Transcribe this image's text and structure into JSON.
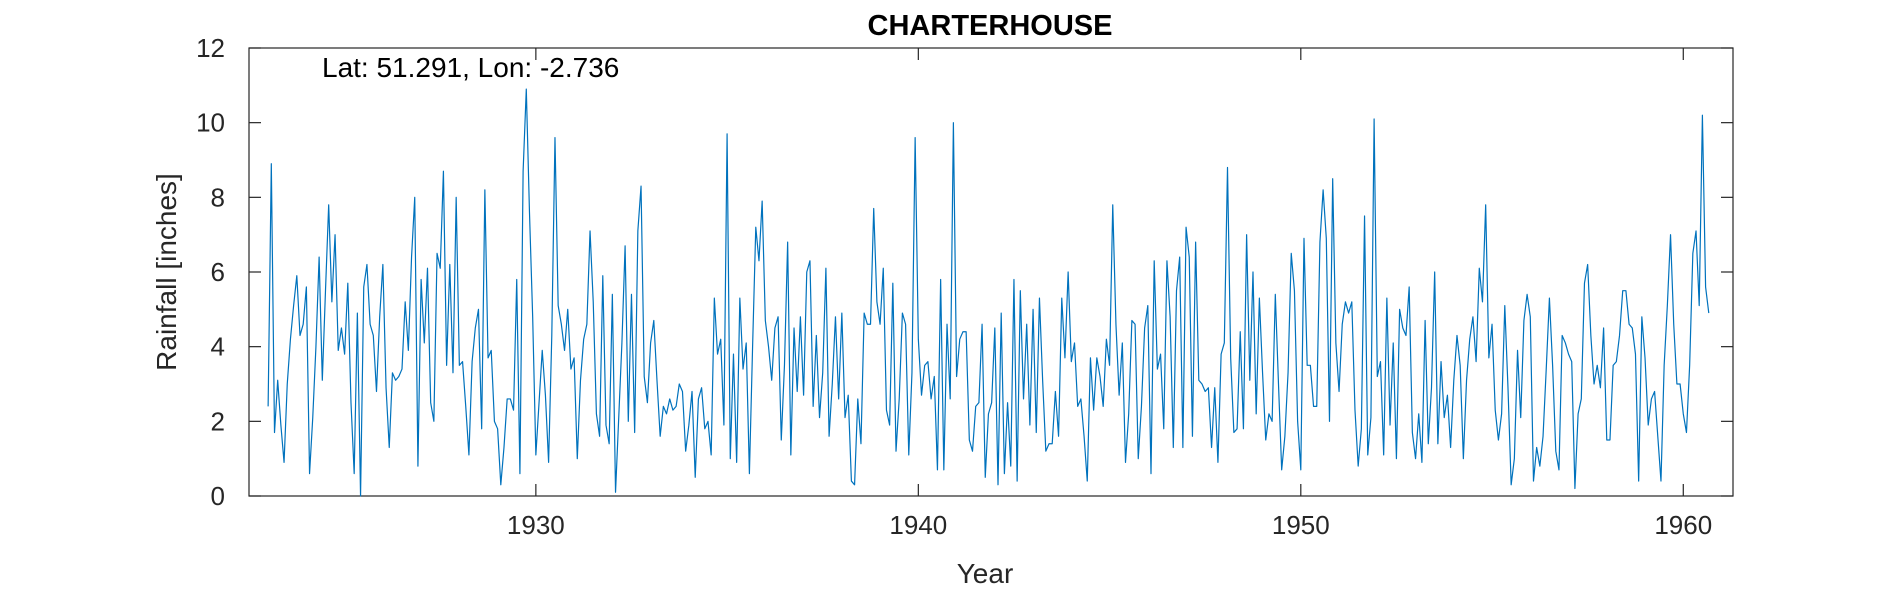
{
  "chart_data": {
    "type": "line",
    "title": "CHARTERHOUSE",
    "annotation": "Lat: 51.291, Lon: -2.736",
    "xlabel": "Year",
    "ylabel": "Rainfall [inches]",
    "xlim": [
      1922.5,
      1961.3
    ],
    "ylim": [
      0,
      12
    ],
    "x_ticks": [
      1930,
      1940,
      1950,
      1960
    ],
    "x_tick_labels": [
      "1930",
      "1940",
      "1950",
      "1960"
    ],
    "y_ticks": [
      0,
      2,
      4,
      6,
      8,
      10,
      12
    ],
    "y_tick_labels": [
      "0",
      "2",
      "4",
      "6",
      "8",
      "10",
      "12"
    ],
    "grid": false,
    "box": true,
    "series": [
      {
        "color": "#0072BD",
        "x_start": 1923.0,
        "x_step": 0.08333333,
        "values": [
          2.4,
          8.9,
          1.7,
          3.1,
          1.9,
          0.9,
          3.0,
          4.2,
          5.1,
          5.9,
          4.3,
          4.6,
          5.6,
          0.6,
          2.1,
          4.0,
          6.4,
          3.1,
          5.5,
          7.8,
          5.2,
          7.0,
          3.9,
          4.5,
          3.8,
          5.7,
          2.5,
          0.6,
          4.9,
          0.0,
          5.6,
          6.2,
          4.6,
          4.3,
          2.8,
          4.8,
          6.2,
          2.9,
          1.3,
          3.3,
          3.1,
          3.2,
          3.4,
          5.2,
          3.9,
          6.4,
          8.0,
          0.8,
          5.8,
          4.1,
          6.1,
          2.5,
          2.0,
          6.5,
          6.1,
          8.7,
          3.5,
          6.2,
          3.3,
          8.0,
          3.5,
          3.6,
          2.4,
          1.1,
          3.6,
          4.5,
          5.0,
          1.8,
          8.2,
          3.7,
          3.9,
          2.0,
          1.8,
          0.3,
          1.3,
          2.6,
          2.6,
          2.3,
          5.8,
          0.6,
          8.7,
          10.9,
          7.6,
          4.8,
          1.1,
          2.5,
          3.9,
          2.7,
          0.9,
          4.3,
          9.6,
          5.1,
          4.6,
          3.9,
          5.0,
          3.4,
          3.7,
          1.0,
          3.1,
          4.2,
          4.6,
          7.1,
          5.2,
          2.2,
          1.6,
          5.9,
          1.9,
          1.4,
          5.4,
          0.1,
          2.1,
          4.1,
          6.7,
          2.0,
          5.4,
          1.7,
          7.1,
          8.3,
          3.2,
          2.5,
          4.1,
          4.7,
          3.1,
          1.6,
          2.4,
          2.2,
          2.6,
          2.3,
          2.4,
          3.0,
          2.8,
          1.2,
          1.9,
          2.8,
          0.5,
          2.6,
          2.9,
          1.8,
          2.0,
          1.1,
          5.3,
          3.8,
          4.2,
          1.9,
          9.7,
          1.0,
          3.8,
          0.9,
          5.3,
          3.4,
          4.1,
          0.6,
          4.0,
          7.2,
          6.3,
          7.9,
          4.7,
          4.0,
          3.1,
          4.5,
          4.8,
          1.5,
          3.5,
          6.8,
          1.1,
          4.5,
          2.8,
          4.8,
          2.7,
          6.0,
          6.3,
          2.4,
          4.3,
          2.1,
          3.3,
          6.1,
          1.6,
          3.0,
          4.8,
          2.6,
          4.9,
          2.1,
          2.7,
          0.4,
          0.3,
          2.6,
          1.4,
          4.9,
          4.6,
          4.6,
          7.7,
          5.2,
          4.6,
          6.1,
          2.3,
          1.9,
          5.7,
          1.2,
          2.6,
          4.9,
          4.6,
          1.1,
          3.3,
          9.6,
          4.2,
          2.7,
          3.5,
          3.6,
          2.6,
          3.2,
          0.7,
          5.8,
          0.7,
          4.6,
          2.6,
          10.0,
          3.2,
          4.2,
          4.4,
          4.4,
          1.5,
          1.2,
          2.4,
          2.5,
          4.6,
          0.5,
          2.2,
          2.5,
          4.5,
          0.3,
          4.9,
          0.6,
          2.5,
          0.8,
          5.8,
          0.4,
          5.5,
          2.6,
          4.6,
          1.9,
          5.0,
          1.7,
          5.3,
          3.1,
          1.2,
          1.4,
          1.4,
          2.8,
          1.6,
          5.3,
          3.7,
          6.0,
          3.6,
          4.1,
          2.4,
          2.6,
          1.6,
          0.4,
          3.7,
          2.3,
          3.7,
          3.2,
          2.4,
          4.2,
          3.5,
          7.8,
          4.6,
          2.7,
          4.1,
          0.9,
          2.2,
          4.7,
          4.6,
          1.0,
          2.4,
          4.5,
          5.1,
          0.6,
          6.3,
          3.4,
          3.8,
          1.8,
          6.3,
          4.8,
          1.3,
          5.5,
          6.4,
          1.3,
          7.2,
          6.4,
          1.6,
          6.8,
          3.1,
          3.0,
          2.8,
          2.9,
          1.3,
          2.9,
          0.9,
          3.8,
          4.1,
          8.8,
          3.7,
          1.7,
          1.8,
          4.4,
          1.8,
          7.0,
          3.1,
          6.0,
          2.2,
          5.3,
          3.3,
          1.5,
          2.2,
          2.0,
          5.4,
          3.0,
          0.7,
          1.6,
          3.3,
          6.5,
          5.5,
          2.0,
          0.7,
          6.9,
          3.5,
          3.5,
          2.4,
          2.4,
          6.8,
          8.2,
          6.9,
          2.0,
          8.5,
          4.1,
          2.8,
          4.6,
          5.2,
          4.9,
          5.2,
          2.3,
          0.8,
          1.8,
          7.5,
          1.1,
          2.1,
          10.1,
          3.2,
          3.6,
          1.1,
          5.3,
          1.9,
          4.1,
          1.0,
          5.0,
          4.5,
          4.3,
          5.6,
          1.7,
          1.0,
          2.2,
          0.9,
          4.7,
          1.4,
          2.9,
          6.0,
          1.4,
          3.6,
          2.1,
          2.7,
          1.3,
          3.1,
          4.3,
          3.5,
          1.0,
          3.1,
          4.2,
          4.8,
          3.6,
          6.1,
          5.2,
          7.8,
          3.7,
          4.6,
          2.3,
          1.5,
          2.2,
          5.1,
          2.9,
          0.3,
          1.0,
          3.9,
          2.1,
          4.7,
          5.4,
          4.8,
          0.4,
          1.3,
          0.8,
          1.6,
          3.4,
          5.3,
          3.5,
          1.2,
          0.7,
          4.3,
          4.1,
          3.8,
          3.6,
          0.2,
          2.2,
          2.6,
          5.7,
          6.2,
          4.3,
          3.0,
          3.5,
          2.9,
          4.5,
          1.5,
          1.5,
          3.5,
          3.6,
          4.3,
          5.5,
          5.5,
          4.6,
          4.5,
          3.8,
          0.4,
          4.8,
          3.7,
          1.9,
          2.6,
          2.8,
          1.6,
          0.4,
          3.5,
          5.1,
          7.0,
          4.6,
          3.0,
          3.0,
          2.2,
          1.7,
          3.5,
          6.5,
          7.1,
          5.1,
          10.2,
          5.6,
          4.9
        ]
      }
    ]
  }
}
